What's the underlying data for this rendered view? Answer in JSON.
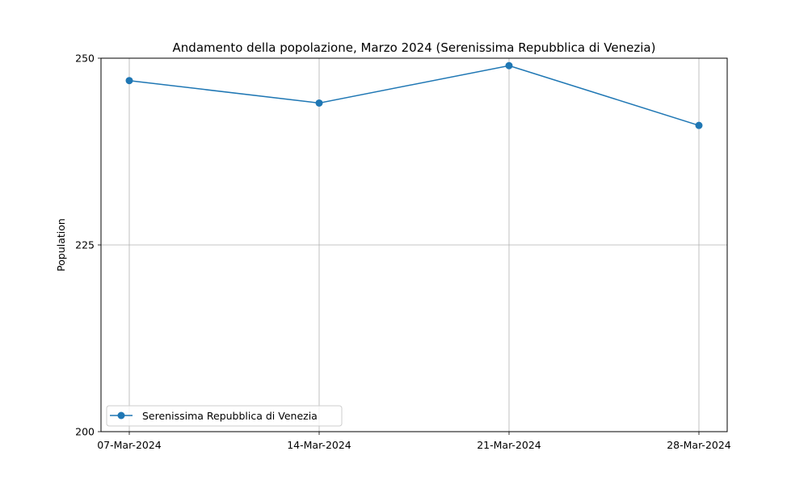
{
  "chart_data": {
    "type": "line",
    "title": "Andamento della popolazione, Marzo 2024 (Serenissima Repubblica di Venezia)",
    "xlabel": "",
    "ylabel": "Population",
    "categories": [
      "07-Mar-2024",
      "14-Mar-2024",
      "21-Mar-2024",
      "28-Mar-2024"
    ],
    "ylim": [
      200,
      250
    ],
    "yticks": [
      "200",
      "225",
      "250"
    ],
    "grid": true,
    "legend_position": "lower-left",
    "series": [
      {
        "name": "Serenissima Repubblica di Venezia",
        "values": [
          247,
          244,
          249,
          241
        ],
        "color": "#1f77b4",
        "marker": "circle"
      }
    ]
  }
}
